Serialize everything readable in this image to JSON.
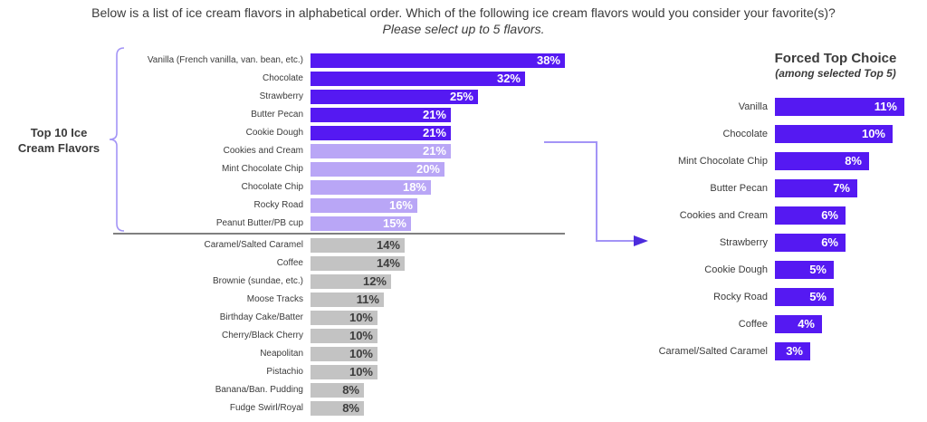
{
  "header": {
    "line1": "Below is a list of ice cream flavors in alphabetical order. Which of the following ice cream flavors would you consider your favorite(s)?",
    "line2": "Please select up to 5 flavors."
  },
  "left_section": {
    "group_label_line1": "Top 10 Ice",
    "group_label_line2": "Cream Flavors"
  },
  "right_section": {
    "title": "Forced Top Choice",
    "subtitle": "(among selected Top 5)"
  },
  "chart_data": [
    {
      "type": "bar",
      "orientation": "horizontal",
      "title": "Top 10 Ice Cream Flavors",
      "unit": "%",
      "value_labels": "inside-right",
      "categories": [
        "Vanilla (French vanilla, van. bean, etc.)",
        "Chocolate",
        "Strawberry",
        "Butter Pecan",
        "Cookie Dough",
        "Cookies and Cream",
        "Mint Chocolate Chip",
        "Chocolate Chip",
        "Rocky Road",
        "Peanut Butter/PB cup",
        "Caramel/Salted Caramel",
        "Coffee",
        "Brownie (sundae, etc.)",
        "Moose Tracks",
        "Birthday Cake/Batter",
        "Cherry/Black Cherry",
        "Neapolitan",
        "Pistachio",
        "Banana/Ban. Pudding",
        "Fudge Swirl/Royal"
      ],
      "values": [
        38,
        32,
        25,
        21,
        21,
        21,
        20,
        18,
        16,
        15,
        14,
        14,
        12,
        11,
        10,
        10,
        10,
        10,
        8,
        8
      ],
      "tiers": [
        "top5",
        "top5",
        "top5",
        "top5",
        "top5",
        "next5",
        "next5",
        "next5",
        "next5",
        "next5",
        "other",
        "other",
        "other",
        "other",
        "other",
        "other",
        "other",
        "other",
        "other",
        "other"
      ]
    },
    {
      "type": "bar",
      "orientation": "horizontal",
      "title": "Forced Top Choice",
      "subtitle": "(among selected Top 5)",
      "unit": "%",
      "value_labels": "inside-right",
      "categories": [
        "Vanilla",
        "Chocolate",
        "Mint Chocolate Chip",
        "Butter Pecan",
        "Cookies and Cream",
        "Strawberry",
        "Cookie Dough",
        "Rocky Road",
        "Coffee",
        "Caramel/Salted Caramel"
      ],
      "values": [
        11,
        10,
        8,
        7,
        6,
        6,
        5,
        5,
        4,
        3
      ]
    }
  ],
  "colors": {
    "top5_bar": "#5519f2",
    "next5_bar": "#b9a6f6",
    "other_bar": "#c3c3c3",
    "value_text_on_purple": "#ffffff",
    "value_text_on_gray": "#3d3d3d",
    "label_text": "#3b3b3b",
    "connector": "#a394f6",
    "arrowhead": "#4c2bdd",
    "divider": "#808080"
  }
}
